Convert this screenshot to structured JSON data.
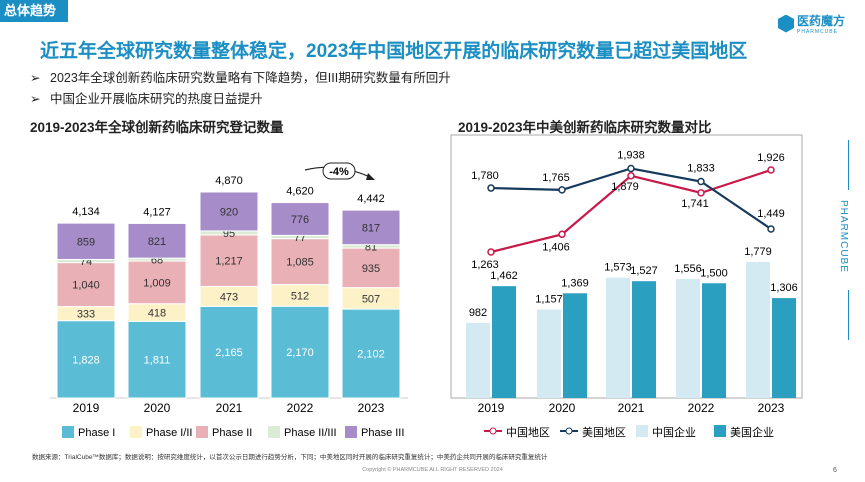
{
  "section_tag": "总体趋势",
  "logo": {
    "name": "医药魔方",
    "sub": "PHARMCUBE"
  },
  "title": "近五年全球研究数量整体稳定，2023年中国地区开展的临床研究数量已超过美国地区",
  "bullets": [
    "2023年全球创新药临床研究数量略有下降趋势，但III期研究数量有所回升",
    "中国企业开展临床研究的热度日益提升"
  ],
  "side_label": "PHARMCUBE",
  "footnote": "数据来源：TrialCube™数据库；数据说明：按研究维度统计，以首次公示日期进行趋势分析，下同；中美地区同时开展的临床研究重复统计；中美药企共同开展的临床研究重复统计",
  "copyright": "Copyright © PHARMCUBE ALL RIGHT RESERVED 2024",
  "page_number": "6",
  "chart_data": [
    {
      "type": "bar",
      "stacked": true,
      "title": "2019-2023年全球创新药临床研究登记数量",
      "categories": [
        "2019",
        "2020",
        "2021",
        "2022",
        "2023"
      ],
      "series": [
        {
          "name": "Phase I",
          "color": "#5bbcd6",
          "values": [
            1828,
            1811,
            2165,
            2170,
            2102
          ]
        },
        {
          "name": "Phase I/II",
          "color": "#fdf1c8",
          "values": [
            333,
            418,
            473,
            512,
            507
          ]
        },
        {
          "name": "Phase II",
          "color": "#e9b0b5",
          "values": [
            1040,
            1009,
            1217,
            1085,
            935
          ]
        },
        {
          "name": "Phase II/III",
          "color": "#dcebd5",
          "values": [
            74,
            68,
            95,
            77,
            81
          ]
        },
        {
          "name": "Phase III",
          "color": "#a68dca",
          "values": [
            859,
            821,
            920,
            776,
            817
          ]
        }
      ],
      "totals": [
        4134,
        4127,
        4870,
        4620,
        4442
      ],
      "annotation": "-4%",
      "legend": "bottom"
    },
    {
      "type": "bar+line",
      "title": "2019-2023年中美创新药临床研究数量对比",
      "categories": [
        "2019",
        "2020",
        "2021",
        "2022",
        "2023"
      ],
      "lines": [
        {
          "name": "中国地区",
          "color": "#c8184a",
          "values": [
            1263,
            1406,
            1879,
            1741,
            1926
          ]
        },
        {
          "name": "美国地区",
          "color": "#16395c",
          "values": [
            1780,
            1765,
            1938,
            1833,
            1449
          ]
        }
      ],
      "bars": [
        {
          "name": "中国企业",
          "color": "#d3eaf2",
          "values": [
            982,
            1157,
            1573,
            1556,
            1779
          ]
        },
        {
          "name": "美国企业",
          "color": "#2b9fc0",
          "values": [
            1462,
            1369,
            1527,
            1500,
            1306
          ]
        }
      ],
      "legend": "bottom"
    }
  ]
}
